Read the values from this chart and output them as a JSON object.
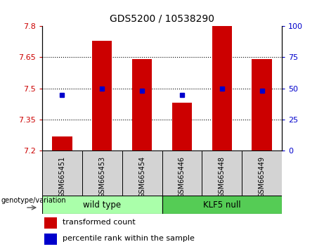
{
  "title": "GDS5200 / 10538290",
  "samples": [
    "GSM665451",
    "GSM665453",
    "GSM665454",
    "GSM665446",
    "GSM665448",
    "GSM665449"
  ],
  "group_labels": [
    "wild type",
    "KLF5 null"
  ],
  "red_values": [
    7.27,
    7.73,
    7.64,
    7.43,
    7.8,
    7.64
  ],
  "blue_values": [
    45,
    50,
    48,
    45,
    50,
    48
  ],
  "ylim_left": [
    7.2,
    7.8
  ],
  "ylim_right": [
    0,
    100
  ],
  "yticks_left": [
    7.2,
    7.35,
    7.5,
    7.65,
    7.8
  ],
  "yticks_right": [
    0,
    25,
    50,
    75,
    100
  ],
  "ytick_labels_left": [
    "7.2",
    "7.35",
    "7.5",
    "7.65",
    "7.8"
  ],
  "ytick_labels_right": [
    "0",
    "25",
    "50",
    "75",
    "100"
  ],
  "hlines": [
    7.35,
    7.5,
    7.65
  ],
  "bar_color": "#cc0000",
  "dot_color": "#0000cc",
  "bar_bottom": 7.2,
  "bar_width": 0.5,
  "group_color_wt": "#aaffaa",
  "group_color_klf": "#55cc55",
  "xlabel_area": "genotype/variation",
  "legend_red": "transformed count",
  "legend_blue": "percentile rank within the sample",
  "title_fontsize": 10,
  "tick_fontsize": 8,
  "label_fontsize": 8,
  "sample_label_fontsize": 7
}
